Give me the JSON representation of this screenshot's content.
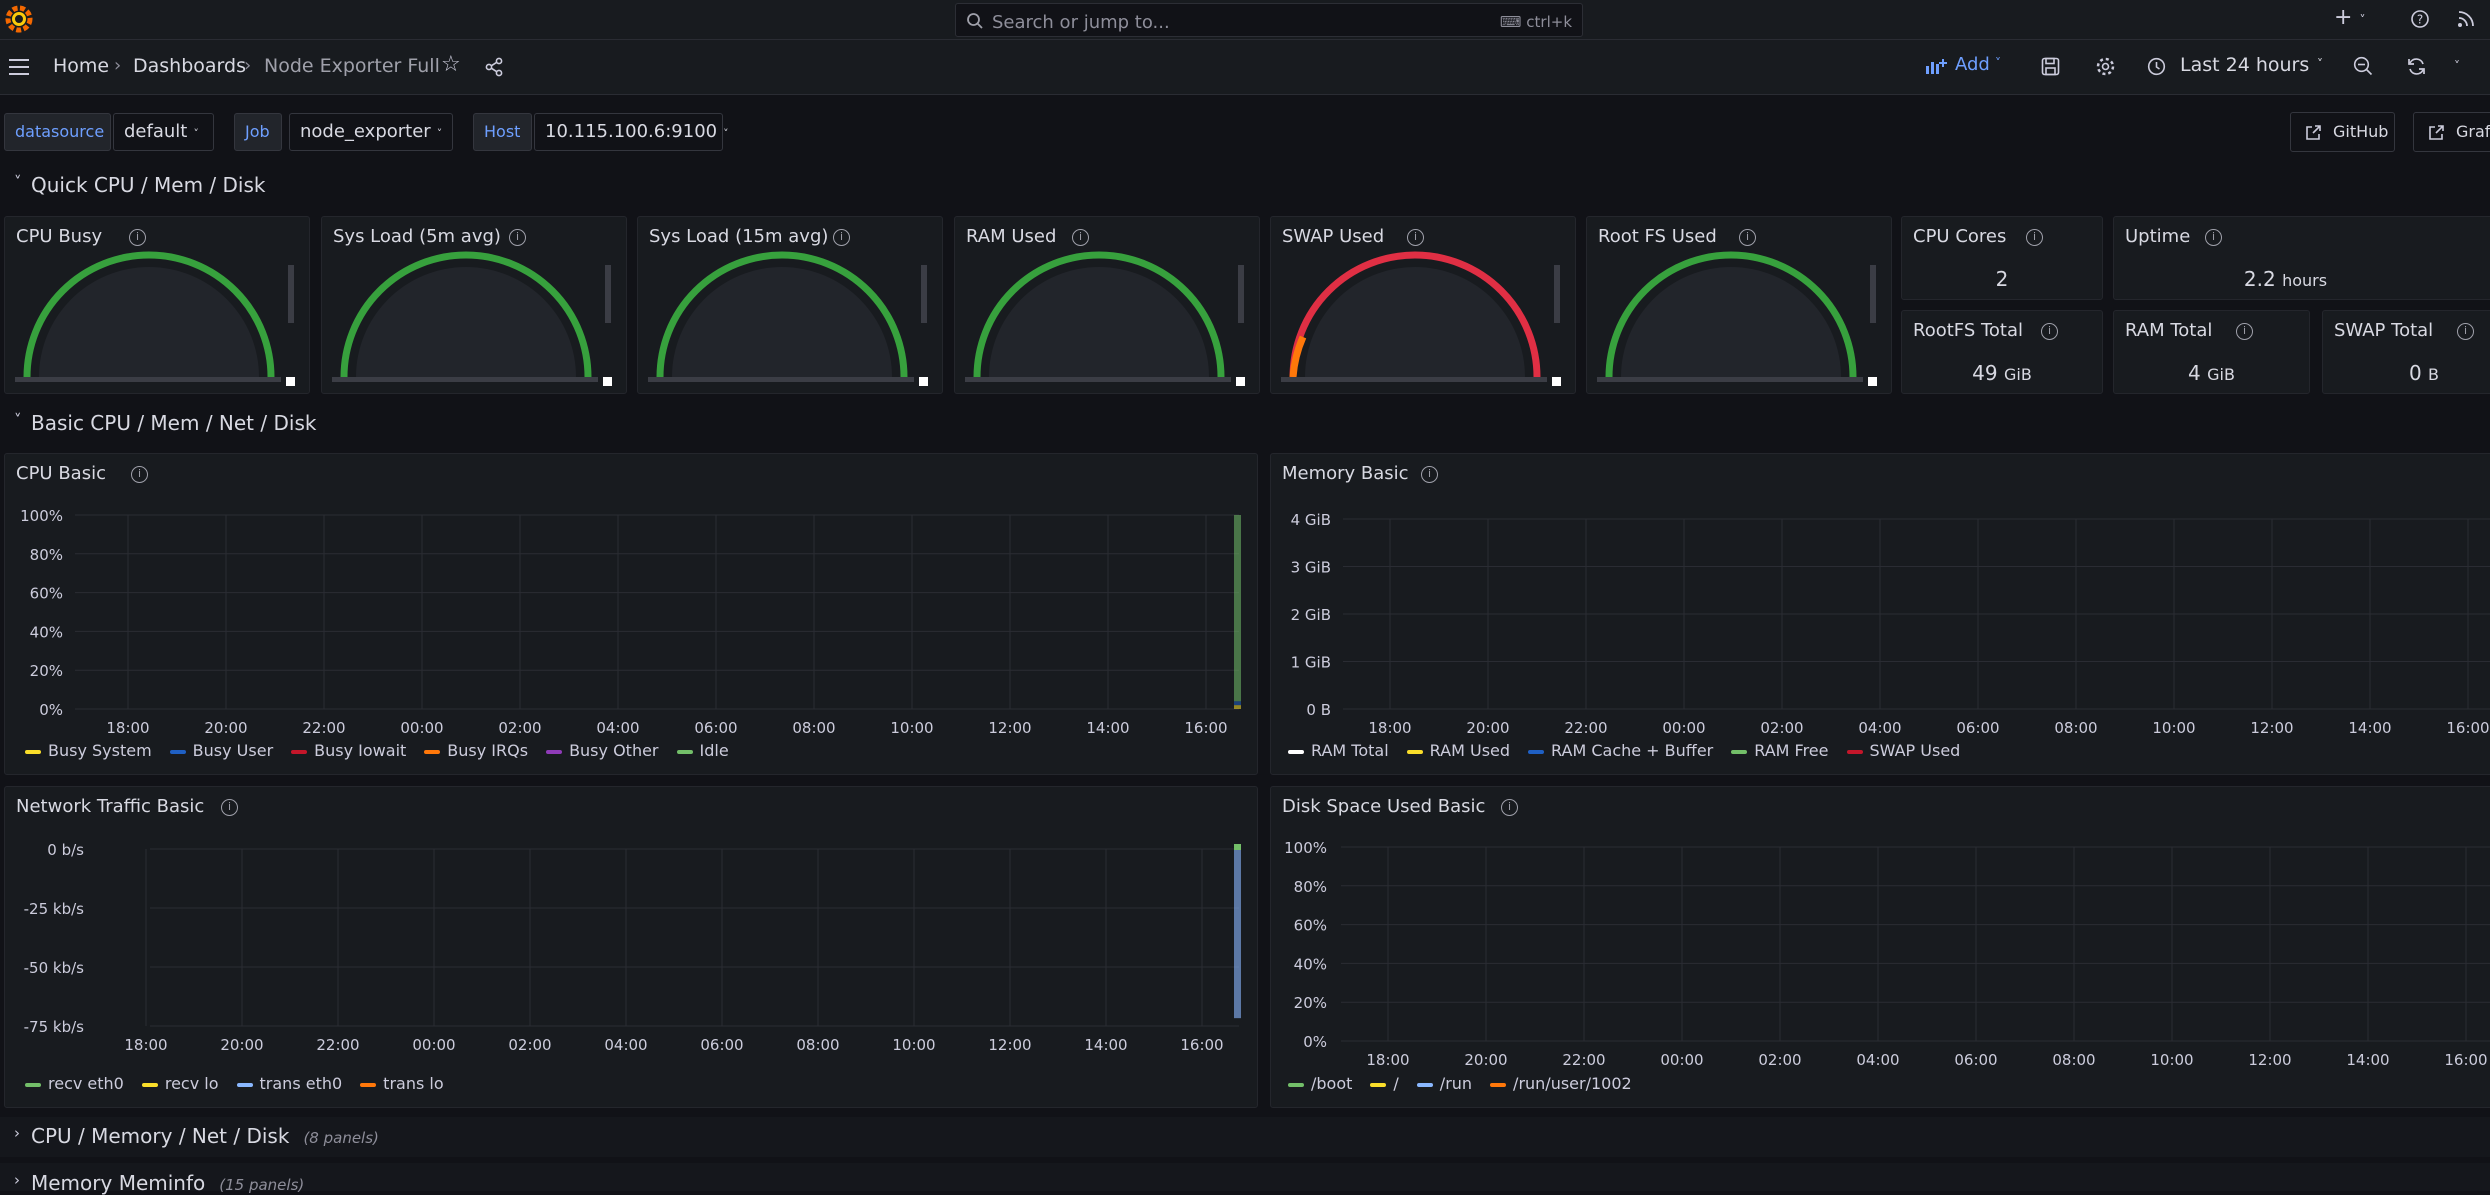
{
  "topbar": {
    "search_placeholder": "Search or jump to...",
    "search_shortcut": "ctrl+k"
  },
  "breadcrumb": {
    "home": "Home",
    "dashboards": "Dashboards",
    "current": "Node Exporter Full"
  },
  "toolbar": {
    "add_label": "Add",
    "time_range": "Last 24 hours"
  },
  "variables": {
    "datasource": {
      "label": "datasource",
      "value": "default"
    },
    "job": {
      "label": "Job",
      "value": "node_exporter"
    },
    "host": {
      "label": "Host",
      "value": "10.115.100.6:9100"
    }
  },
  "links": {
    "github": "GitHub",
    "grafana": "Grafana"
  },
  "rows": {
    "quick": "Quick CPU / Mem / Disk",
    "basic": "Basic CPU / Mem / Net / Disk",
    "cpu_mem_net_disk": {
      "title": "CPU / Memory / Net / Disk",
      "count": "(8 panels)"
    },
    "meminfo": {
      "title": "Memory Meminfo",
      "count": "(15 panels)"
    }
  },
  "gauges": [
    {
      "title": "CPU Busy",
      "level": 0
    },
    {
      "title": "Sys Load (5m avg)",
      "level": 0
    },
    {
      "title": "Sys Load (15m avg)",
      "level": 0
    },
    {
      "title": "RAM Used",
      "level": 0
    },
    {
      "title": "SWAP Used",
      "level": 0
    },
    {
      "title": "Root FS Used",
      "level": 0
    }
  ],
  "stats": {
    "cpu_cores": {
      "title": "CPU Cores",
      "value": "2"
    },
    "uptime": {
      "title": "Uptime",
      "value": "2.2",
      "unit": "hours"
    },
    "rootfs_total": {
      "title": "RootFS Total",
      "value": "49",
      "unit": "GiB"
    },
    "ram_total": {
      "title": "RAM Total",
      "value": "4",
      "unit": "GiB"
    },
    "swap_total": {
      "title": "SWAP Total",
      "value": "0",
      "unit": "B"
    }
  },
  "colors": {
    "green": "#37a13d",
    "red": "#e02f44",
    "accent": "#6e9fff",
    "orange": "#ff780a"
  },
  "chart_data": [
    {
      "type": "bar",
      "title": "CPU Basic",
      "x_ticks": [
        "18:00",
        "20:00",
        "22:00",
        "00:00",
        "02:00",
        "04:00",
        "06:00",
        "08:00",
        "10:00",
        "12:00",
        "14:00",
        "16:00"
      ],
      "y_ticks": [
        "100%",
        "80%",
        "60%",
        "40%",
        "20%",
        "0%"
      ],
      "ylim": [
        0,
        100
      ],
      "series": [
        {
          "name": "Busy System",
          "color": "#fade2a"
        },
        {
          "name": "Busy User",
          "color": "#1f60c4"
        },
        {
          "name": "Busy Iowait",
          "color": "#c4162a"
        },
        {
          "name": "Busy IRQs",
          "color": "#ff780a"
        },
        {
          "name": "Busy Other",
          "color": "#8f3bb8"
        },
        {
          "name": "Idle",
          "color": "#73bf69"
        }
      ],
      "bars": [
        {
          "x": "16:40",
          "values": [
            2,
            2,
            0,
            0,
            0,
            96
          ]
        }
      ]
    },
    {
      "type": "line",
      "title": "Memory Basic",
      "x_ticks": [
        "18:00",
        "20:00",
        "22:00",
        "00:00",
        "02:00",
        "04:00",
        "06:00",
        "08:00",
        "10:00",
        "12:00",
        "14:00",
        "16:00"
      ],
      "y_ticks": [
        "4 GiB",
        "3 GiB",
        "2 GiB",
        "1 GiB",
        "0 B"
      ],
      "series": [
        {
          "name": "RAM Total",
          "color": "#ffffff"
        },
        {
          "name": "RAM Used",
          "color": "#fade2a"
        },
        {
          "name": "RAM Cache + Buffer",
          "color": "#1f60c4"
        },
        {
          "name": "RAM Free",
          "color": "#73bf69"
        },
        {
          "name": "SWAP Used",
          "color": "#c4162a"
        }
      ]
    },
    {
      "type": "bar",
      "title": "Network Traffic Basic",
      "x_ticks": [
        "18:00",
        "20:00",
        "22:00",
        "00:00",
        "02:00",
        "04:00",
        "06:00",
        "08:00",
        "10:00",
        "12:00",
        "14:00",
        "16:00"
      ],
      "y_ticks": [
        "0 b/s",
        "-25 kb/s",
        "-50 kb/s",
        "-75 kb/s"
      ],
      "ylim": [
        -85,
        5
      ],
      "series": [
        {
          "name": "recv eth0",
          "color": "#73bf69"
        },
        {
          "name": "recv lo",
          "color": "#fade2a"
        },
        {
          "name": "trans eth0",
          "color": "#8ab8ff"
        },
        {
          "name": "trans lo",
          "color": "#ff780a"
        }
      ],
      "bars": [
        {
          "x": "16:40",
          "recv": 3,
          "trans": -83
        }
      ]
    },
    {
      "type": "line",
      "title": "Disk Space Used Basic",
      "x_ticks": [
        "18:00",
        "20:00",
        "22:00",
        "00:00",
        "02:00",
        "04:00",
        "06:00",
        "08:00",
        "10:00",
        "12:00",
        "14:00",
        "16:00"
      ],
      "y_ticks": [
        "100%",
        "80%",
        "60%",
        "40%",
        "20%",
        "0%"
      ],
      "series": [
        {
          "name": "/boot",
          "color": "#73bf69"
        },
        {
          "name": "/",
          "color": "#fade2a"
        },
        {
          "name": "/run",
          "color": "#8ab8ff"
        },
        {
          "name": "/run/user/1002",
          "color": "#ff780a"
        }
      ]
    }
  ]
}
